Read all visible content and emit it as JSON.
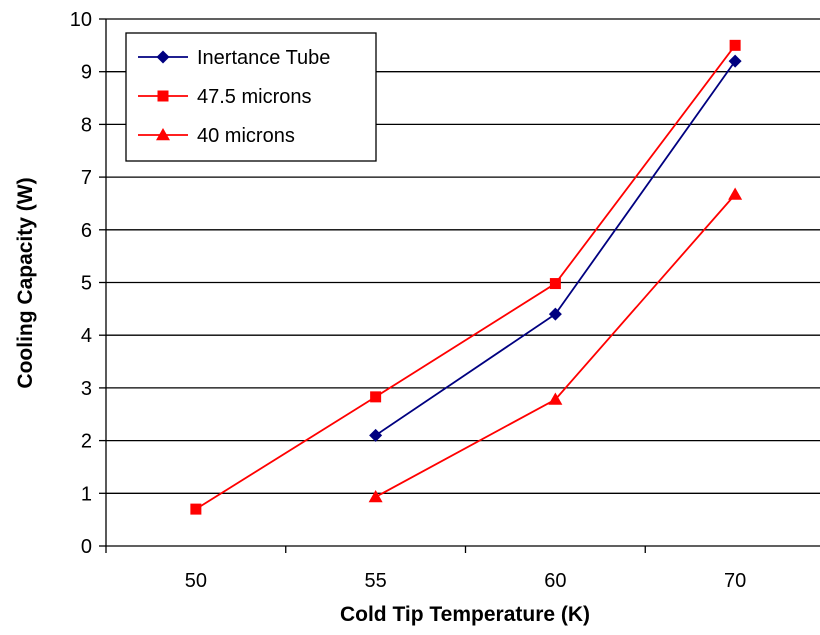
{
  "chart_data": {
    "type": "line",
    "categories": [
      "50",
      "55",
      "60",
      "70"
    ],
    "xlabel": "Cold Tip Temperature (K)",
    "ylabel": "Cooling Capacity (W)",
    "ylim": [
      0,
      10
    ],
    "yticks": [
      "0",
      "1",
      "2",
      "3",
      "4",
      "5",
      "6",
      "7",
      "8",
      "9",
      "10"
    ],
    "grid": "horizontal",
    "legend": "top-left",
    "series": [
      {
        "name": "Inertance Tube",
        "marker": "diamond",
        "color": "#000080",
        "values": [
          null,
          2.1,
          4.4,
          9.2
        ]
      },
      {
        "name": "47.5 microns",
        "marker": "square",
        "color": "#ff0000",
        "values": [
          0.7,
          2.83,
          4.98,
          9.5
        ]
      },
      {
        "name": "40 microns",
        "marker": "triangle",
        "color": "#ff0000",
        "values": [
          null,
          0.93,
          2.78,
          6.67
        ]
      }
    ]
  }
}
